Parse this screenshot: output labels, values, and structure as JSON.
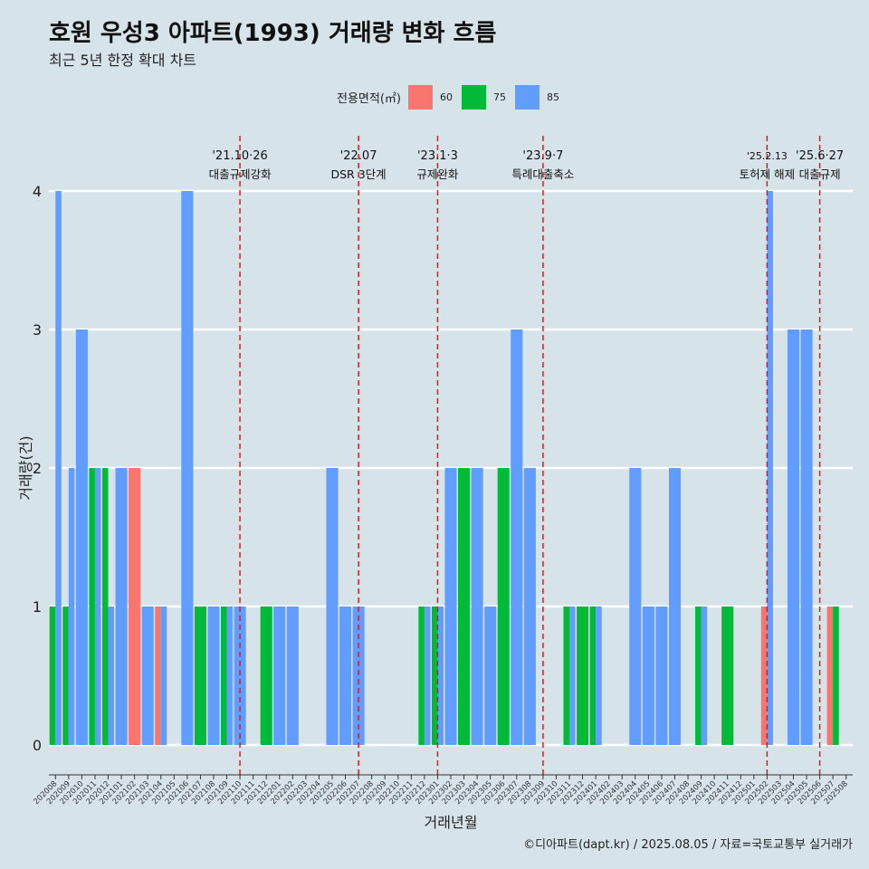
{
  "header": {
    "title": "호원 우성3 아파트(1993) 거래량 변화 흐름",
    "subtitle": "최근 5년 한정 확대 차트"
  },
  "legend": {
    "title": "전용면적(㎡)",
    "items": [
      {
        "label": "60",
        "color": "#f8766d"
      },
      {
        "label": "75",
        "color": "#00ba38"
      },
      {
        "label": "85",
        "color": "#619cff"
      }
    ]
  },
  "caption": "©디아파트(dapt.kr) / 2025.08.05 / 자료=국토교통부 실거래가",
  "chart_data": {
    "type": "bar",
    "xlabel": "거래년월",
    "ylabel": "거래량(건)",
    "ylim": [
      0,
      4
    ],
    "yticks": [
      0,
      1,
      2,
      3,
      4
    ],
    "grid": true,
    "legend_position": "top",
    "categories": [
      "202008",
      "202009",
      "202010",
      "202011",
      "202012",
      "202101",
      "202102",
      "202103",
      "202104",
      "202105",
      "202106",
      "202107",
      "202108",
      "202109",
      "202110",
      "202111",
      "202112",
      "202201",
      "202202",
      "202203",
      "202204",
      "202205",
      "202206",
      "202207",
      "202208",
      "202209",
      "202210",
      "202211",
      "202212",
      "202301",
      "202302",
      "202303",
      "202304",
      "202305",
      "202306",
      "202307",
      "202308",
      "202309",
      "202310",
      "202311",
      "202312",
      "202401",
      "202402",
      "202403",
      "202404",
      "202405",
      "202406",
      "202407",
      "202408",
      "202409",
      "202410",
      "202411",
      "202412",
      "202501",
      "202502",
      "202503",
      "202504",
      "202505",
      "202506",
      "202507",
      "202508"
    ],
    "series": [
      {
        "name": "60",
        "color": "#f8766d",
        "values": [
          0,
          0,
          0,
          0,
          0,
          0,
          2,
          0,
          1,
          0,
          0,
          0,
          0,
          0,
          0,
          0,
          0,
          0,
          0,
          0,
          0,
          0,
          0,
          0,
          0,
          0,
          0,
          0,
          0,
          0,
          0,
          0,
          0,
          0,
          0,
          0,
          0,
          0,
          0,
          0,
          0,
          0,
          0,
          0,
          0,
          0,
          0,
          0,
          0,
          0,
          0,
          0,
          0,
          0,
          1,
          0,
          0,
          0,
          0,
          1,
          0
        ]
      },
      {
        "name": "75",
        "color": "#00ba38",
        "values": [
          1,
          1,
          0,
          2,
          2,
          0,
          0,
          0,
          0,
          0,
          0,
          1,
          0,
          1,
          0,
          0,
          1,
          0,
          0,
          0,
          0,
          0,
          0,
          0,
          0,
          0,
          0,
          0,
          1,
          1,
          0,
          2,
          0,
          0,
          2,
          0,
          0,
          0,
          0,
          1,
          1,
          1,
          0,
          0,
          0,
          0,
          0,
          0,
          0,
          1,
          0,
          1,
          0,
          0,
          0,
          0,
          0,
          0,
          0,
          1,
          0
        ]
      },
      {
        "name": "85",
        "color": "#619cff",
        "values": [
          4,
          2,
          3,
          2,
          1,
          2,
          0,
          1,
          1,
          0,
          4,
          0,
          1,
          1,
          1,
          0,
          0,
          1,
          1,
          0,
          0,
          2,
          1,
          1,
          0,
          0,
          0,
          0,
          1,
          1,
          2,
          0,
          2,
          1,
          0,
          3,
          2,
          0,
          0,
          1,
          0,
          1,
          0,
          0,
          2,
          1,
          1,
          2,
          0,
          1,
          0,
          0,
          0,
          0,
          4,
          0,
          3,
          3,
          0,
          0,
          0
        ]
      }
    ],
    "annotations": [
      {
        "date": "'21.10·26",
        "label": "대출규제강화",
        "x": "202110"
      },
      {
        "date": "'22.07",
        "label": "DSR 3단계",
        "x": "202207"
      },
      {
        "date": "'23.1·3",
        "label": "규제완화",
        "x": "202301"
      },
      {
        "date": "'23.9·7",
        "label": "특례대출축소",
        "x": "202309"
      },
      {
        "date": "'25.2.13",
        "label": "토허제 해제",
        "x": "202502"
      },
      {
        "date": "'25.6·27",
        "label": "대출규제",
        "x": "202506"
      }
    ]
  }
}
